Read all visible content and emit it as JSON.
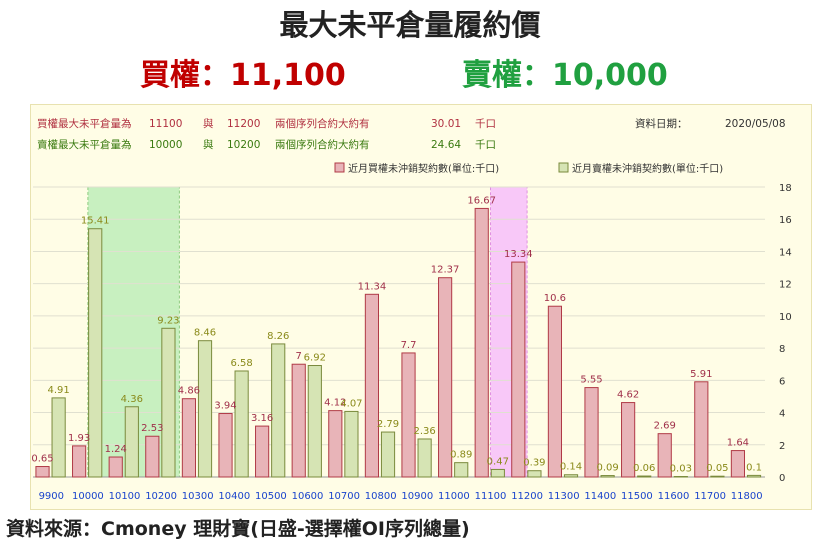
{
  "header": {
    "title": "最大未平倉量履約價",
    "call_text": "買權：11,100",
    "put_text": "賣權：10,000"
  },
  "info": {
    "call_row": {
      "label": "買權最大未平倉量為",
      "strike1": "11100",
      "conj": "與",
      "strike2": "11200",
      "desc": "兩個序列合約大約有",
      "value": "30.01",
      "unit": "千口"
    },
    "put_row": {
      "label": "賣權最大未平倉量為",
      "strike1": "10000",
      "conj": "與",
      "strike2": "10200",
      "desc": "兩個序列合約大約有",
      "value": "24.64",
      "unit": "千口"
    },
    "date_label": "資料日期：",
    "date_value": "2020/05/08"
  },
  "colors": {
    "call_bar": "#e8b4b8",
    "call_bar_edge": "#b03a46",
    "put_bar": "#d6e4b4",
    "put_bar_edge": "#7a8a3c",
    "call_label": "#a0304a",
    "put_label": "#8a8a1a",
    "tick_x": "#1a44cc",
    "highlight_put": "#c8f0c0",
    "highlight_call": "#f8c8f8",
    "panel_bg": "#fffde6"
  },
  "chart_data": {
    "type": "bar",
    "categories": [
      "9900",
      "10000",
      "10100",
      "10200",
      "10300",
      "10400",
      "10500",
      "10600",
      "10700",
      "10800",
      "10900",
      "11000",
      "11100",
      "11200",
      "11300",
      "11400",
      "11500",
      "11600",
      "11700",
      "11800"
    ],
    "series": [
      {
        "name": "近月買權未沖銷契約數(單位:千口)",
        "values": [
          0.65,
          1.93,
          1.24,
          2.53,
          4.86,
          3.94,
          3.16,
          7,
          4.12,
          11.34,
          7.7,
          12.37,
          16.67,
          13.34,
          10.6,
          5.55,
          4.62,
          2.69,
          5.91,
          1.64
        ],
        "labels": [
          "0.65",
          "1.93",
          "1.24",
          "2.53",
          "4.86",
          "3.94",
          "3.16",
          "7",
          "4.12",
          "11.34",
          "7.7",
          "12.37",
          "16.67",
          "13.34",
          "10.6",
          "5.55",
          "4.62",
          "2.69",
          "5.91",
          "1.64"
        ]
      },
      {
        "name": "近月賣權未沖銷契約數(單位:千口)",
        "values": [
          4.91,
          15.41,
          4.36,
          9.23,
          8.46,
          6.58,
          8.26,
          6.92,
          4.07,
          2.79,
          2.36,
          0.89,
          0.47,
          0.39,
          0.14,
          0.09,
          0.06,
          0.03,
          0.05,
          0.1
        ],
        "labels": [
          "4.91",
          "15.41",
          "4.36",
          "9.23",
          "8.46",
          "6.58",
          "8.26",
          "6.92",
          "4.07",
          "2.79",
          "2.36",
          "0.89",
          "0.47",
          "0.39",
          "0.14",
          "0.09",
          "0.06",
          "0.03",
          "0.05",
          "0.1"
        ]
      }
    ],
    "ylim": [
      0,
      18
    ],
    "yticks": [
      "0",
      "2",
      "4",
      "6",
      "8",
      "10",
      "12",
      "14",
      "16",
      "18"
    ],
    "highlight_ranges": [
      {
        "from": "10000",
        "to": "10200",
        "series": "put"
      },
      {
        "from": "11100",
        "to": "11200",
        "series": "call"
      }
    ],
    "legend_position": "top-right",
    "grid": "horizontal"
  },
  "footer": {
    "source": "資料來源：Cmoney 理財寶(日盛-選擇權OI序列總量)"
  }
}
